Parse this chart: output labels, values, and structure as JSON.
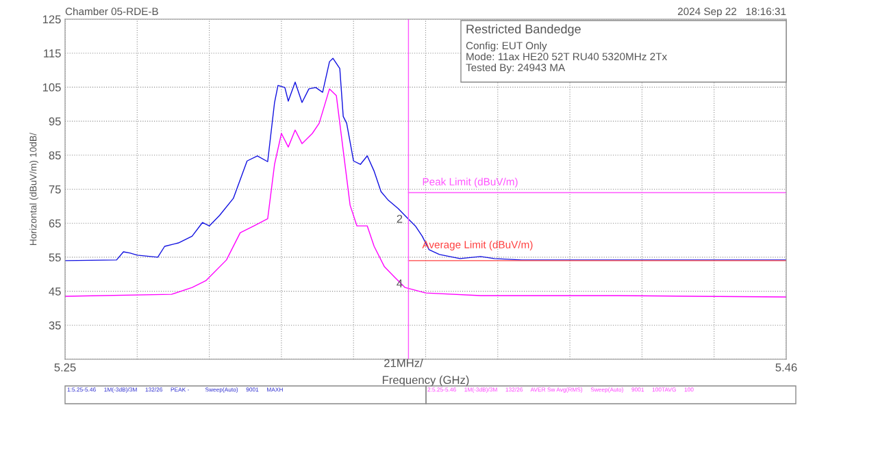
{
  "chart_data": {
    "type": "line",
    "xlabel": "Frequency (GHz)",
    "ylabel": "Horizontal (dBuV/m) 10dB/",
    "xlim": [
      5.25,
      5.46
    ],
    "ylim": [
      25,
      125
    ],
    "xticks": [
      5.25,
      {
        "value": 5.271,
        "label": null
      },
      {
        "value": 5.292,
        "label": null
      },
      {
        "value": 5.313,
        "label": null
      },
      {
        "value": 5.334,
        "label": null
      },
      {
        "value": 5.355,
        "label": null
      },
      {
        "value": 5.376,
        "label": null
      },
      {
        "value": 5.397,
        "label": null
      },
      {
        "value": 5.418,
        "label": null
      },
      {
        "value": 5.439,
        "label": null
      },
      5.46
    ],
    "yticks": [
      {
        "value": 25,
        "label": null
      },
      35,
      45,
      55,
      65,
      75,
      85,
      95,
      105,
      115,
      125
    ],
    "grid": true,
    "marker": "none",
    "line_style": "solid",
    "legend": false,
    "series": [
      {
        "color": "#1010e0",
        "x": [
          5.25,
          5.265,
          5.267,
          5.269,
          5.271,
          5.277,
          5.279,
          5.283,
          5.287,
          5.29,
          5.292,
          5.295,
          5.299,
          5.303,
          5.306,
          5.309,
          5.311,
          5.312,
          5.314,
          5.315,
          5.317,
          5.319,
          5.321,
          5.323,
          5.325,
          5.327,
          5.328,
          5.33,
          5.331,
          5.332,
          5.334,
          5.336,
          5.338,
          5.34,
          5.342,
          5.344,
          5.347,
          5.35,
          5.352,
          5.354,
          5.356,
          5.359,
          5.365,
          5.371,
          5.375,
          5.383,
          5.411,
          5.46
        ],
        "values": [
          54.0,
          54.2,
          56.6,
          56.2,
          55.6,
          55.0,
          58.2,
          59.2,
          61.2,
          65.2,
          64.2,
          67.3,
          72.3,
          83.3,
          84.8,
          83.1,
          100.5,
          105.5,
          104.9,
          100.9,
          106.5,
          100.5,
          104.5,
          104.9,
          103.5,
          112.5,
          113.5,
          110.5,
          96.4,
          94.4,
          83.3,
          82.3,
          84.8,
          80.3,
          74.3,
          71.9,
          69.3,
          66.2,
          64.2,
          61.2,
          57.2,
          55.8,
          54.6,
          55.2,
          54.6,
          54.2,
          54.2,
          54.2
        ]
      },
      {
        "color": "#ff00ff",
        "x": [
          5.25,
          5.281,
          5.287,
          5.291,
          5.297,
          5.301,
          5.305,
          5.309,
          5.311,
          5.313,
          5.315,
          5.317,
          5.319,
          5.322,
          5.324,
          5.327,
          5.329,
          5.331,
          5.333,
          5.335,
          5.338,
          5.34,
          5.343,
          5.346,
          5.349,
          5.355,
          5.371,
          5.411,
          5.46
        ],
        "values": [
          43.5,
          44.1,
          46.1,
          48.1,
          54.2,
          62.2,
          64.2,
          66.3,
          82.3,
          91.4,
          87.4,
          92.4,
          88.4,
          91.4,
          94.4,
          104.5,
          102.5,
          86.4,
          70.3,
          64.2,
          64.2,
          58.2,
          52.2,
          49.1,
          46.1,
          44.5,
          43.7,
          43.7,
          43.3
        ]
      },
      {
        "name": "Peak Limit (dBuV/m)",
        "color": "#ff55ff",
        "x": [
          5.35,
          5.46
        ],
        "values": [
          74,
          74
        ]
      },
      {
        "name": "Average Limit (dBuV/m)",
        "color": "#ff4040",
        "x": [
          5.35,
          5.46
        ],
        "values": [
          54,
          54
        ]
      }
    ],
    "ref_lines": [
      {
        "axis": "x",
        "value": 5.35,
        "color": "#ff55ff"
      }
    ],
    "annotations": [
      "Chamber 05-RDE-B",
      "2024 Sep 22   18:16:31",
      "Restricted Bandedge",
      "Config: EUT Only",
      "Mode: 11ax HE20 52T RU40 5320MHz 2Tx",
      "Tested By: 24943 MA",
      "21MHz/",
      "1:5.25-5.46     1M(-3dB)/3M     132/26     PEAK -          Sweep(Auto)     9001     MAXH",
      "2:5.25-5.46     1M(-3dB)/3M     132/26     AVER Sw Avg(RMS)     Sweep(Auto)     9001     100TAVG     100",
      {
        "text": "2",
        "x": 5.35,
        "y": 66
      },
      {
        "text": "4",
        "x": 5.35,
        "y": 47
      }
    ]
  }
}
